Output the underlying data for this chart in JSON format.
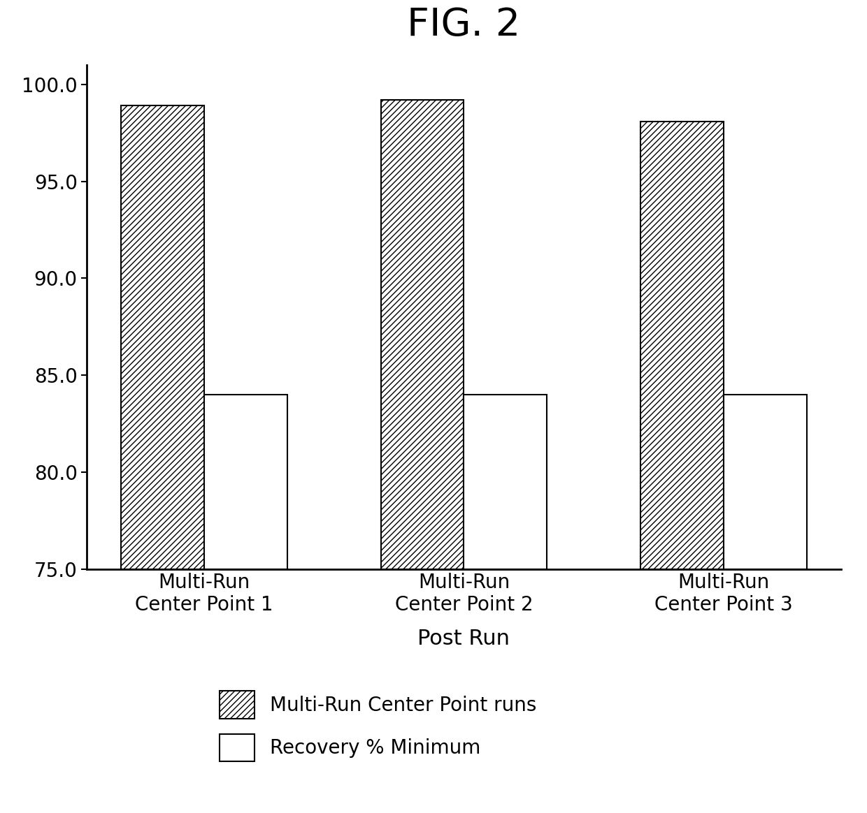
{
  "title": "FIG. 2",
  "xlabel": "Post Run",
  "ylabel": "",
  "categories": [
    "Multi-Run\nCenter Point 1",
    "Multi-Run\nCenter Point 2",
    "Multi-Run\nCenter Point 3"
  ],
  "series": [
    {
      "label": "Multi-Run Center Point runs",
      "values": [
        98.9,
        99.2,
        98.1
      ],
      "hatch": "////",
      "facecolor": "white",
      "edgecolor": "black"
    },
    {
      "label": "Recovery % Minimum",
      "values": [
        84.0,
        84.0,
        84.0
      ],
      "hatch": "",
      "facecolor": "white",
      "edgecolor": "black"
    }
  ],
  "ymin": 75.0,
  "ylim": [
    75.0,
    101.0
  ],
  "yticks": [
    75.0,
    80.0,
    85.0,
    90.0,
    95.0,
    100.0
  ],
  "bar_width": 0.32,
  "background_color": "#ffffff",
  "title_fontsize": 40,
  "axis_fontsize": 22,
  "tick_fontsize": 20,
  "legend_fontsize": 20
}
